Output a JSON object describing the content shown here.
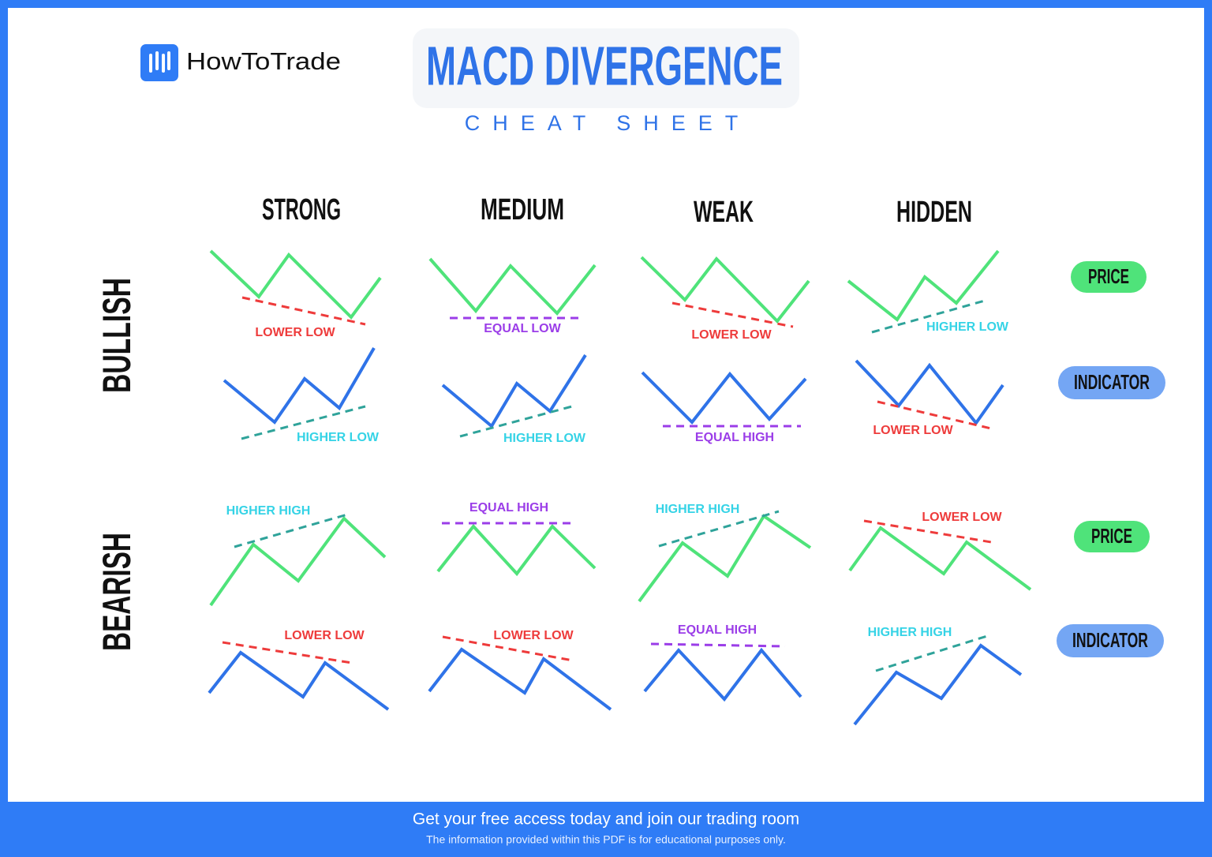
{
  "header": {
    "brand": "HowToTrade",
    "title": "MACD DIVERGENCE",
    "subtitle": "CHEAT SHEET"
  },
  "columns": [
    "STRONG",
    "MEDIUM",
    "WEAK",
    "HIDDEN"
  ],
  "rows": [
    {
      "label": "BULLISH",
      "price_badge": "PRICE",
      "indicator_badge": "INDICATOR",
      "price_labels": [
        "LOWER LOW",
        "EQUAL LOW",
        "LOWER LOW",
        "HIGHER LOW"
      ],
      "indicator_labels": [
        "HIGHER LOW",
        "HIGHER LOW",
        "EQUAL HIGH",
        "LOWER LOW"
      ]
    },
    {
      "label": "BEARISH",
      "price_badge": "PRICE",
      "indicator_badge": "INDICATOR",
      "price_labels": [
        "HIGHER HIGH",
        "EQUAL HIGH",
        "HIGHER HIGH",
        "LOWER LOW"
      ],
      "indicator_labels": [
        "LOWER LOW",
        "LOWER LOW",
        "EQUAL HIGH",
        "HIGHER HIGH"
      ]
    }
  ],
  "footer": {
    "cta": "Get your free access today and join our trading room",
    "disclaimer": "The information provided within this PDF is for educational purposes only."
  }
}
